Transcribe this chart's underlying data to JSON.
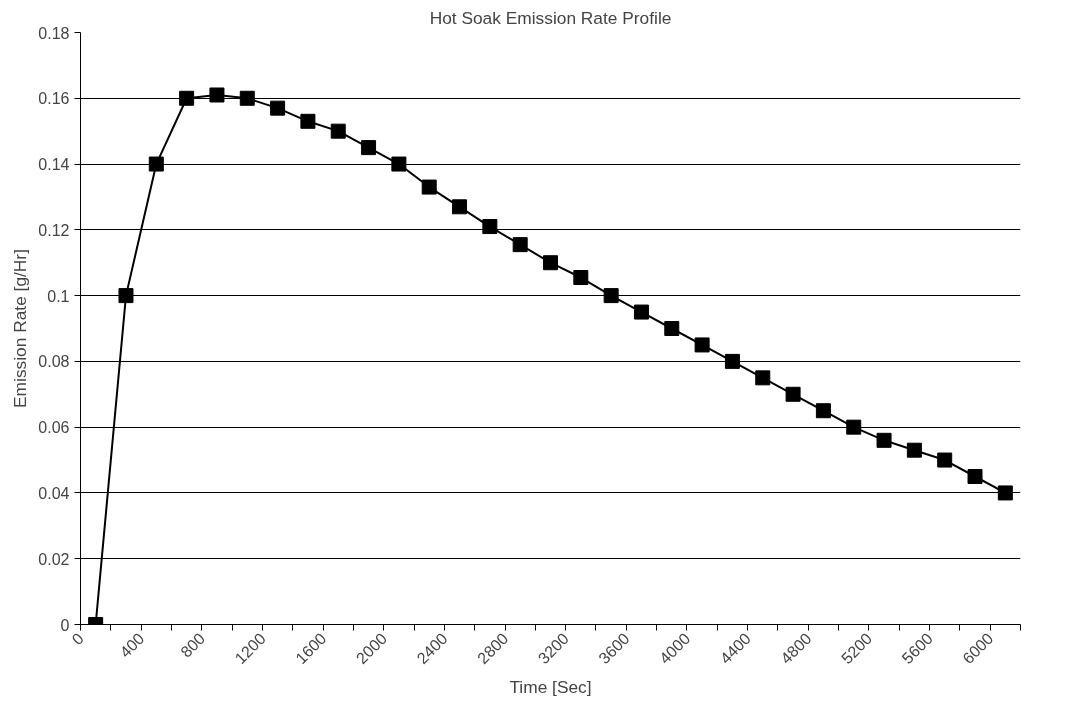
{
  "chart_data": {
    "type": "line",
    "title": "Hot Soak Emission Rate Profile",
    "xlabel": "Time [Sec]",
    "ylabel": "Emission Rate [g/Hr]",
    "x": [
      100,
      300,
      500,
      700,
      900,
      1100,
      1300,
      1500,
      1700,
      1900,
      2100,
      2300,
      2500,
      2700,
      2900,
      3100,
      3300,
      3500,
      3700,
      3900,
      4100,
      4300,
      4500,
      4700,
      4900,
      5100,
      5300,
      5500,
      5700,
      5900,
      6100
    ],
    "series": [
      {
        "color": "#000000",
        "values": [
          0,
          0.1,
          0.14,
          0.16,
          0.161,
          0.16,
          0.157,
          0.153,
          0.15,
          0.145,
          0.14,
          0.133,
          0.127,
          0.121,
          0.1155,
          0.11,
          0.1055,
          0.1,
          0.095,
          0.09,
          0.085,
          0.08,
          0.075,
          0.07,
          0.065,
          0.06,
          0.056,
          0.053,
          0.05,
          0.045,
          0.04
        ]
      }
    ],
    "xlim": [
      0,
      6200
    ],
    "xticks": [
      0,
      {
        "value": 200,
        "label": null
      },
      400,
      {
        "value": 600,
        "label": null
      },
      800,
      {
        "value": 1000,
        "label": null
      },
      1200,
      {
        "value": 1400,
        "label": null
      },
      1600,
      {
        "value": 1800,
        "label": null
      },
      2000,
      {
        "value": 2200,
        "label": null
      },
      2400,
      {
        "value": 2600,
        "label": null
      },
      2800,
      {
        "value": 3000,
        "label": null
      },
      3200,
      {
        "value": 3400,
        "label": null
      },
      3600,
      {
        "value": 3800,
        "label": null
      },
      4000,
      {
        "value": 4200,
        "label": null
      },
      4400,
      {
        "value": 4600,
        "label": null
      },
      4800,
      {
        "value": 5000,
        "label": null
      },
      5200,
      {
        "value": 5400,
        "label": null
      },
      5600,
      {
        "value": 5800,
        "label": null
      },
      6000,
      {
        "value": 6200,
        "label": null
      }
    ],
    "ylim": [
      0,
      0.18
    ],
    "yticks": [
      0,
      0.02,
      0.04,
      0.06,
      0.08,
      0.1,
      0.12,
      0.14,
      0.16,
      0.18
    ],
    "grid": "y",
    "marker": "square",
    "line_style": "solid"
  }
}
